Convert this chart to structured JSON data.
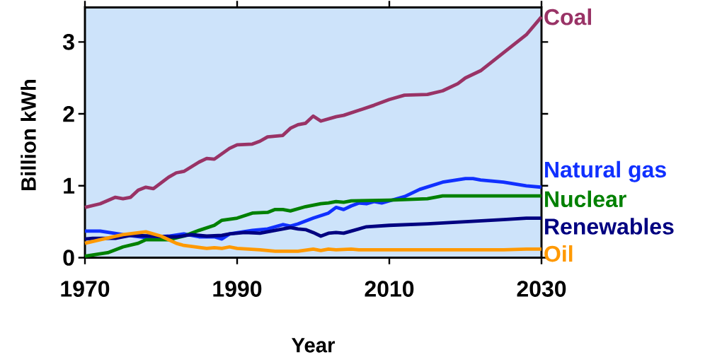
{
  "chart_data": {
    "type": "line",
    "xlabel": "Year",
    "ylabel": "Billion kWh",
    "xlim": [
      1970,
      2030
    ],
    "ylim": [
      0,
      3.48
    ],
    "xticks": [
      1970,
      1990,
      2010,
      2030
    ],
    "yticks": [
      0,
      1,
      2,
      3
    ],
    "grid": false,
    "line_style": "solid",
    "series": [
      {
        "name": "Coal",
        "color": "#993366",
        "x": [
          1970,
          1972,
          1974,
          1975,
          1976,
          1977,
          1978,
          1979,
          1981,
          1982,
          1983,
          1985,
          1986,
          1987,
          1989,
          1990,
          1992,
          1993,
          1994,
          1996,
          1997,
          1998,
          1999,
          2000,
          2001,
          2003,
          2004,
          2006,
          2008,
          2010,
          2012,
          2015,
          2017,
          2019,
          2020,
          2022,
          2025,
          2028,
          2030
        ],
        "values": [
          0.7,
          0.75,
          0.84,
          0.82,
          0.84,
          0.94,
          0.98,
          0.96,
          1.12,
          1.18,
          1.2,
          1.33,
          1.38,
          1.37,
          1.52,
          1.57,
          1.58,
          1.62,
          1.68,
          1.7,
          1.8,
          1.85,
          1.87,
          1.97,
          1.9,
          1.96,
          1.98,
          2.05,
          2.12,
          2.2,
          2.26,
          2.27,
          2.32,
          2.42,
          2.5,
          2.6,
          2.85,
          3.1,
          3.35
        ]
      },
      {
        "name": "Natural gas",
        "color": "#1030ff",
        "x": [
          1970,
          1972,
          1975,
          1978,
          1981,
          1983,
          1985,
          1987,
          1988,
          1989,
          1992,
          1994,
          1995,
          1996,
          1997,
          1998,
          2000,
          2002,
          2003,
          2004,
          2005,
          2006,
          2007,
          2008,
          2009,
          2012,
          2014,
          2017,
          2020,
          2021,
          2022,
          2025,
          2028,
          2030
        ],
        "values": [
          0.37,
          0.37,
          0.32,
          0.28,
          0.3,
          0.33,
          0.29,
          0.29,
          0.26,
          0.33,
          0.38,
          0.4,
          0.43,
          0.46,
          0.44,
          0.47,
          0.55,
          0.62,
          0.7,
          0.67,
          0.72,
          0.76,
          0.75,
          0.78,
          0.76,
          0.85,
          0.95,
          1.05,
          1.1,
          1.1,
          1.08,
          1.05,
          1.0,
          0.98
        ]
      },
      {
        "name": "Nuclear",
        "color": "#008000",
        "x": [
          1970,
          1973,
          1975,
          1977,
          1978,
          1981,
          1983,
          1985,
          1987,
          1988,
          1990,
          1992,
          1994,
          1995,
          1996,
          1997,
          1999,
          2001,
          2002,
          2003,
          2004,
          2005,
          2010,
          2015,
          2017,
          2030
        ],
        "values": [
          0.02,
          0.07,
          0.15,
          0.2,
          0.25,
          0.25,
          0.3,
          0.38,
          0.45,
          0.52,
          0.55,
          0.62,
          0.63,
          0.67,
          0.67,
          0.65,
          0.71,
          0.75,
          0.76,
          0.78,
          0.77,
          0.79,
          0.8,
          0.82,
          0.86,
          0.86
        ]
      },
      {
        "name": "Renewables",
        "color": "#000080",
        "x": [
          1970,
          1971,
          1974,
          1976,
          1979,
          1981,
          1982,
          1984,
          1986,
          1988,
          1989,
          1991,
          1993,
          1995,
          1997,
          1998,
          1999,
          2000,
          2001,
          2002,
          2003,
          2004,
          2005,
          2007,
          2010,
          2015,
          2020,
          2025,
          2028,
          2030
        ],
        "values": [
          0.26,
          0.27,
          0.27,
          0.31,
          0.3,
          0.29,
          0.29,
          0.32,
          0.3,
          0.31,
          0.33,
          0.35,
          0.34,
          0.38,
          0.42,
          0.4,
          0.39,
          0.35,
          0.3,
          0.34,
          0.35,
          0.34,
          0.37,
          0.43,
          0.45,
          0.47,
          0.5,
          0.53,
          0.55,
          0.55
        ]
      },
      {
        "name": "Oil",
        "color": "#ff9900",
        "x": [
          1970,
          1972,
          1975,
          1978,
          1980,
          1982,
          1983,
          1986,
          1987,
          1988,
          1989,
          1990,
          1993,
          1995,
          1998,
          2000,
          2001,
          2002,
          2003,
          2005,
          2006,
          2010,
          2025,
          2028,
          2030
        ],
        "values": [
          0.2,
          0.25,
          0.32,
          0.36,
          0.3,
          0.2,
          0.17,
          0.13,
          0.14,
          0.13,
          0.15,
          0.13,
          0.11,
          0.09,
          0.09,
          0.12,
          0.1,
          0.12,
          0.11,
          0.12,
          0.11,
          0.11,
          0.11,
          0.12,
          0.12
        ]
      }
    ]
  }
}
